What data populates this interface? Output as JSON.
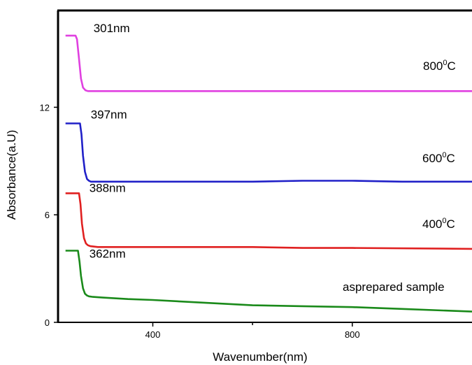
{
  "chart_data": {
    "type": "line",
    "xlabel": "Wavenumber(nm)",
    "ylabel": "Absorbance(a.U)",
    "xlim": [
      210,
      1040
    ],
    "ylim": [
      0,
      17.4
    ],
    "x_ticks": [
      400,
      800
    ],
    "y_ticks": [
      0,
      6,
      12
    ],
    "x_minor_ticks": [
      600
    ],
    "grid": false,
    "legend": "none",
    "series": [
      {
        "name": "800°C",
        "color": "#e040e0",
        "x": [
          225,
          245,
          248,
          252,
          256,
          260,
          265,
          270,
          290,
          350,
          450,
          600,
          800,
          1040
        ],
        "y": [
          16.0,
          16.0,
          15.8,
          14.7,
          13.6,
          13.1,
          12.95,
          12.9,
          12.9,
          12.9,
          12.9,
          12.9,
          12.9,
          12.9
        ]
      },
      {
        "name": "600°C",
        "color": "#2020c8",
        "x": [
          225,
          254,
          257,
          260,
          264,
          268,
          272,
          276,
          290,
          330,
          400,
          500,
          600,
          700,
          800,
          900,
          1040
        ],
        "y": [
          11.1,
          11.1,
          10.5,
          9.3,
          8.4,
          8.0,
          7.9,
          7.85,
          7.85,
          7.85,
          7.85,
          7.85,
          7.85,
          7.9,
          7.9,
          7.85,
          7.85
        ]
      },
      {
        "name": "400°C",
        "color": "#e02020",
        "x": [
          225,
          252,
          255,
          258,
          262,
          266,
          270,
          275,
          290,
          350,
          450,
          600,
          700,
          800,
          1040
        ],
        "y": [
          7.2,
          7.2,
          6.6,
          5.5,
          4.7,
          4.4,
          4.3,
          4.25,
          4.2,
          4.2,
          4.2,
          4.2,
          4.15,
          4.15,
          4.1
        ]
      },
      {
        "name": "asprepared sample",
        "color": "#1a8a1a",
        "x": [
          225,
          250,
          253,
          256,
          260,
          264,
          268,
          272,
          280,
          300,
          350,
          400,
          500,
          600,
          700,
          800,
          900,
          1040
        ],
        "y": [
          4.0,
          4.0,
          3.4,
          2.6,
          1.9,
          1.6,
          1.5,
          1.45,
          1.42,
          1.38,
          1.3,
          1.25,
          1.1,
          0.95,
          0.9,
          0.85,
          0.75,
          0.6
        ]
      }
    ],
    "annotations": [
      {
        "text": "301nm",
        "series": 0
      },
      {
        "text": "397nm",
        "series": 1
      },
      {
        "text": "388nm",
        "series": 2
      },
      {
        "text": "362nm",
        "series": 3
      }
    ],
    "series_labels": [
      {
        "base": "800",
        "sup": "0",
        "unit": "C"
      },
      {
        "base": "600",
        "sup": "0",
        "unit": "C"
      },
      {
        "base": "400",
        "sup": "0",
        "unit": "C"
      },
      {
        "base": "asprepared sample",
        "sup": "",
        "unit": ""
      }
    ]
  }
}
